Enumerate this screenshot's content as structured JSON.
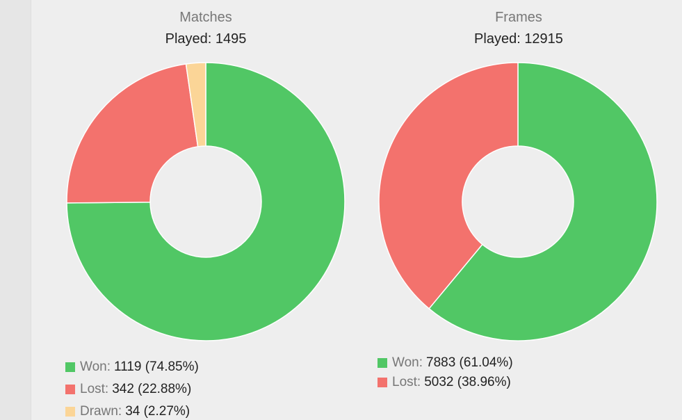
{
  "chart_data": [
    {
      "type": "pie",
      "title": "Matches",
      "subtitle": "Played: 1495",
      "slices": [
        {
          "label": "Won:",
          "value": 1119,
          "display": "1119 (74.85%)",
          "color": "#51c765"
        },
        {
          "label": "Lost:",
          "value": 342,
          "display": "342 (22.88%)",
          "color": "#f3726d"
        },
        {
          "label": "Drawn:",
          "value": 34,
          "display": "34 (2.27%)",
          "color": "#fbd597"
        }
      ],
      "legend": "bottom-left",
      "grid": false
    },
    {
      "type": "pie",
      "title": "Frames",
      "subtitle": "Played: 12915",
      "slices": [
        {
          "label": "Won:",
          "value": 7883,
          "display": "7883 (61.04%)",
          "color": "#51c765"
        },
        {
          "label": "Lost:",
          "value": 5032,
          "display": "5032 (38.96%)",
          "color": "#f3726d"
        }
      ],
      "legend": "bottom-left",
      "grid": false
    }
  ]
}
